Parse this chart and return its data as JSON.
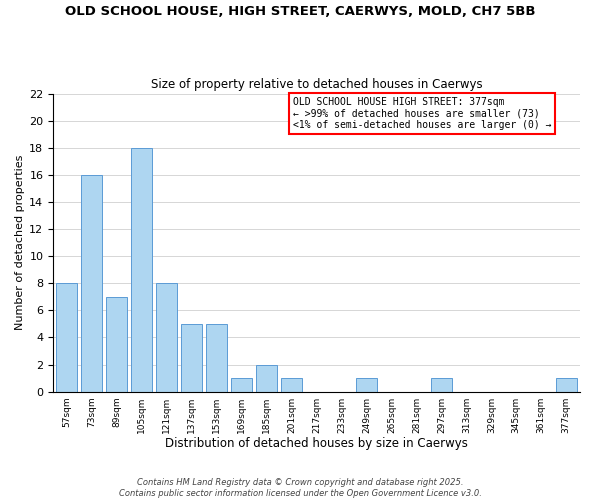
{
  "title": "OLD SCHOOL HOUSE, HIGH STREET, CAERWYS, MOLD, CH7 5BB",
  "subtitle": "Size of property relative to detached houses in Caerwys",
  "xlabel": "Distribution of detached houses by size in Caerwys",
  "ylabel": "Number of detached properties",
  "bar_color": "#aed6f1",
  "bar_edge_color": "#5b9bd5",
  "bin_labels": [
    "57sqm",
    "73sqm",
    "89sqm",
    "105sqm",
    "121sqm",
    "137sqm",
    "153sqm",
    "169sqm",
    "185sqm",
    "201sqm",
    "217sqm",
    "233sqm",
    "249sqm",
    "265sqm",
    "281sqm",
    "297sqm",
    "313sqm",
    "329sqm",
    "345sqm",
    "361sqm",
    "377sqm"
  ],
  "counts": [
    8,
    16,
    7,
    18,
    8,
    5,
    5,
    1,
    2,
    1,
    0,
    0,
    1,
    0,
    0,
    1,
    0,
    0,
    0,
    0,
    1
  ],
  "ylim": [
    0,
    22
  ],
  "yticks": [
    0,
    2,
    4,
    6,
    8,
    10,
    12,
    14,
    16,
    18,
    20,
    22
  ],
  "annotation_lines": [
    "OLD SCHOOL HOUSE HIGH STREET: 377sqm",
    "← >99% of detached houses are smaller (73)",
    "<1% of semi-detached houses are larger (0) →"
  ],
  "footer_lines": [
    "Contains HM Land Registry data © Crown copyright and database right 2025.",
    "Contains public sector information licensed under the Open Government Licence v3.0."
  ],
  "grid_color": "#d0d0d0",
  "background_color": "#ffffff",
  "title_fontsize": 9.5,
  "subtitle_fontsize": 8.5,
  "xlabel_fontsize": 8.5,
  "ylabel_fontsize": 8,
  "xtick_fontsize": 6.5,
  "ytick_fontsize": 8,
  "annotation_fontsize": 7,
  "footer_fontsize": 6
}
